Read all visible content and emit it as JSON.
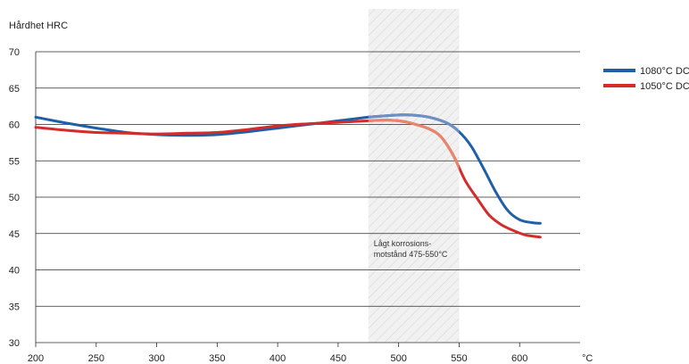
{
  "chart_data": {
    "type": "line",
    "ylabel": "Hårdhet HRC",
    "xlabel": "°C",
    "xlim": [
      200,
      650
    ],
    "ylim": [
      30,
      70
    ],
    "x_ticks": [
      200,
      250,
      300,
      350,
      400,
      450,
      500,
      550,
      600
    ],
    "y_ticks": [
      30,
      35,
      40,
      45,
      50,
      55,
      60,
      65,
      70
    ],
    "grid": "horizontal",
    "legend_position": "top-right",
    "series": [
      {
        "name": "1080°C DC",
        "color": "#1f5fa8",
        "highlight_color": "#6d8fc4",
        "x": [
          200,
          225,
          250,
          275,
          300,
          325,
          350,
          375,
          400,
          425,
          450,
          475,
          490,
          500,
          510,
          525,
          540,
          550,
          560,
          570,
          580,
          590,
          600,
          610,
          617
        ],
        "y": [
          61.0,
          60.2,
          59.5,
          58.9,
          58.6,
          58.5,
          58.6,
          59.0,
          59.5,
          60.0,
          60.5,
          61.0,
          61.2,
          61.3,
          61.3,
          61.0,
          60.2,
          59.0,
          57.0,
          54.0,
          50.8,
          48.2,
          46.9,
          46.5,
          46.4
        ]
      },
      {
        "name": "1050°C DC",
        "color": "#d42b2b",
        "highlight_color": "#e8856a",
        "x": [
          200,
          225,
          250,
          275,
          300,
          325,
          350,
          375,
          400,
          425,
          450,
          475,
          490,
          500,
          510,
          525,
          535,
          545,
          555,
          565,
          575,
          585,
          595,
          605,
          617
        ],
        "y": [
          59.6,
          59.2,
          58.9,
          58.8,
          58.7,
          58.8,
          58.9,
          59.3,
          59.8,
          60.1,
          60.3,
          60.5,
          60.6,
          60.5,
          60.2,
          59.4,
          58.3,
          55.8,
          52.3,
          49.8,
          47.5,
          46.2,
          45.4,
          44.8,
          44.5
        ]
      }
    ],
    "annotation": {
      "lines": [
        "Lågt korrosions-",
        "motstånd 475-550°C"
      ],
      "x_range": [
        475,
        550
      ],
      "pattern": "diagonal-hatch"
    }
  }
}
